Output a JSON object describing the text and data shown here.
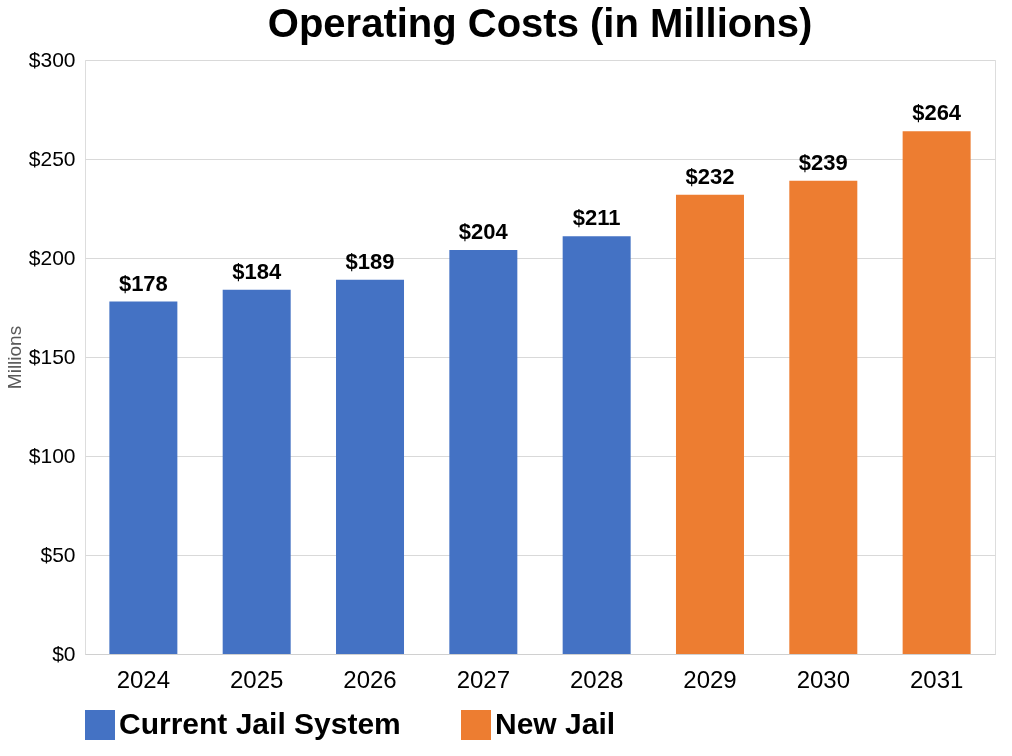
{
  "chart_data": {
    "type": "bar",
    "title": "Operating Costs (in Millions)",
    "ylabel": "Millions",
    "categories": [
      "2024",
      "2025",
      "2026",
      "2027",
      "2028",
      "2029",
      "2030",
      "2031"
    ],
    "series": [
      {
        "name": "Current Jail System",
        "color": "#4472c4",
        "values": [
          178,
          184,
          189,
          204,
          211,
          null,
          null,
          null
        ],
        "value_labels": [
          "$178",
          "$184",
          "$189",
          "$204",
          "$211",
          null,
          null,
          null
        ]
      },
      {
        "name": "New Jail",
        "color": "#ed7d31",
        "values": [
          null,
          null,
          null,
          null,
          null,
          232,
          239,
          264
        ],
        "value_labels": [
          null,
          null,
          null,
          null,
          null,
          "$232",
          "$239",
          "$264"
        ]
      }
    ],
    "ylim": [
      0,
      300
    ],
    "yticks": [
      {
        "value": 0,
        "label": "$0"
      },
      {
        "value": 50,
        "label": "$50"
      },
      {
        "value": 100,
        "label": "$100"
      },
      {
        "value": 150,
        "label": "$150"
      },
      {
        "value": 200,
        "label": "$200"
      },
      {
        "value": 250,
        "label": "$250"
      },
      {
        "value": 300,
        "label": "$300"
      }
    ],
    "grid": "y",
    "legend": "bottom"
  }
}
